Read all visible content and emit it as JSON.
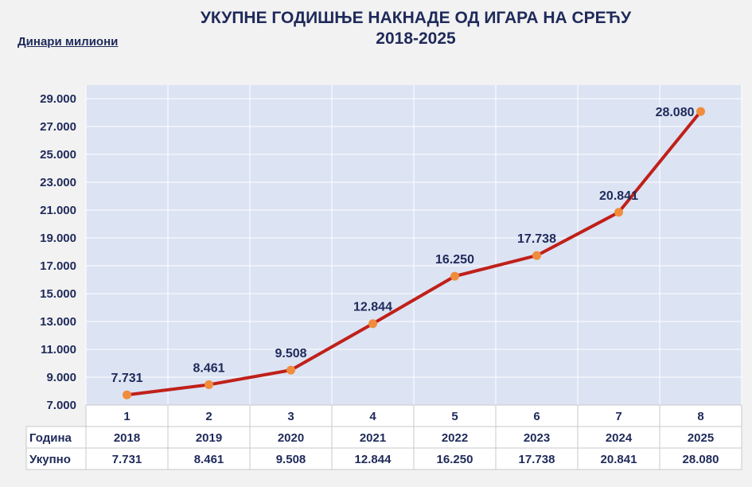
{
  "title": {
    "line1": "УКУПНЕ ГОДИШЊЕ НАКНАДЕ ОД ИГАРА НА СРЕЋУ",
    "line2": "2018-2025"
  },
  "unit_label": "Динари милиони",
  "chart_data": {
    "type": "line",
    "title": "УКУПНЕ ГОДИШЊЕ НАКНАДЕ ОД ИГАРА НА СРЕЋУ 2018-2025",
    "ylabel": "Динари милиони",
    "x": [
      1,
      2,
      3,
      4,
      5,
      6,
      7,
      8
    ],
    "x_labels": [
      "1",
      "2",
      "3",
      "4",
      "5",
      "6",
      "7",
      "8"
    ],
    "y_ticks": [
      "7.000",
      "9.000",
      "11.000",
      "13.000",
      "15.000",
      "17.000",
      "19.000",
      "21.000",
      "23.000",
      "25.000",
      "27.000",
      "29.000"
    ],
    "ylim": [
      7000,
      29000
    ],
    "grid": true,
    "series": [
      {
        "values": [
          7731,
          8461,
          9508,
          12844,
          16250,
          17738,
          20841,
          28080
        ],
        "labels": [
          "7.731",
          "8.461",
          "9.508",
          "12.844",
          "16.250",
          "17.738",
          "20.841",
          "28.080"
        ]
      }
    ],
    "line_color": "#c0201a",
    "marker_color": "#f08c3c",
    "table": {
      "rows": [
        {
          "header": "Година",
          "cells": [
            "2018",
            "2019",
            "2020",
            "2021",
            "2022",
            "2023",
            "2024",
            "2025"
          ]
        },
        {
          "header": "Укупно",
          "cells": [
            "7.731",
            "8.461",
            "9.508",
            "12.844",
            "16.250",
            "17.738",
            "20.841",
            "28.080"
          ]
        }
      ]
    }
  }
}
